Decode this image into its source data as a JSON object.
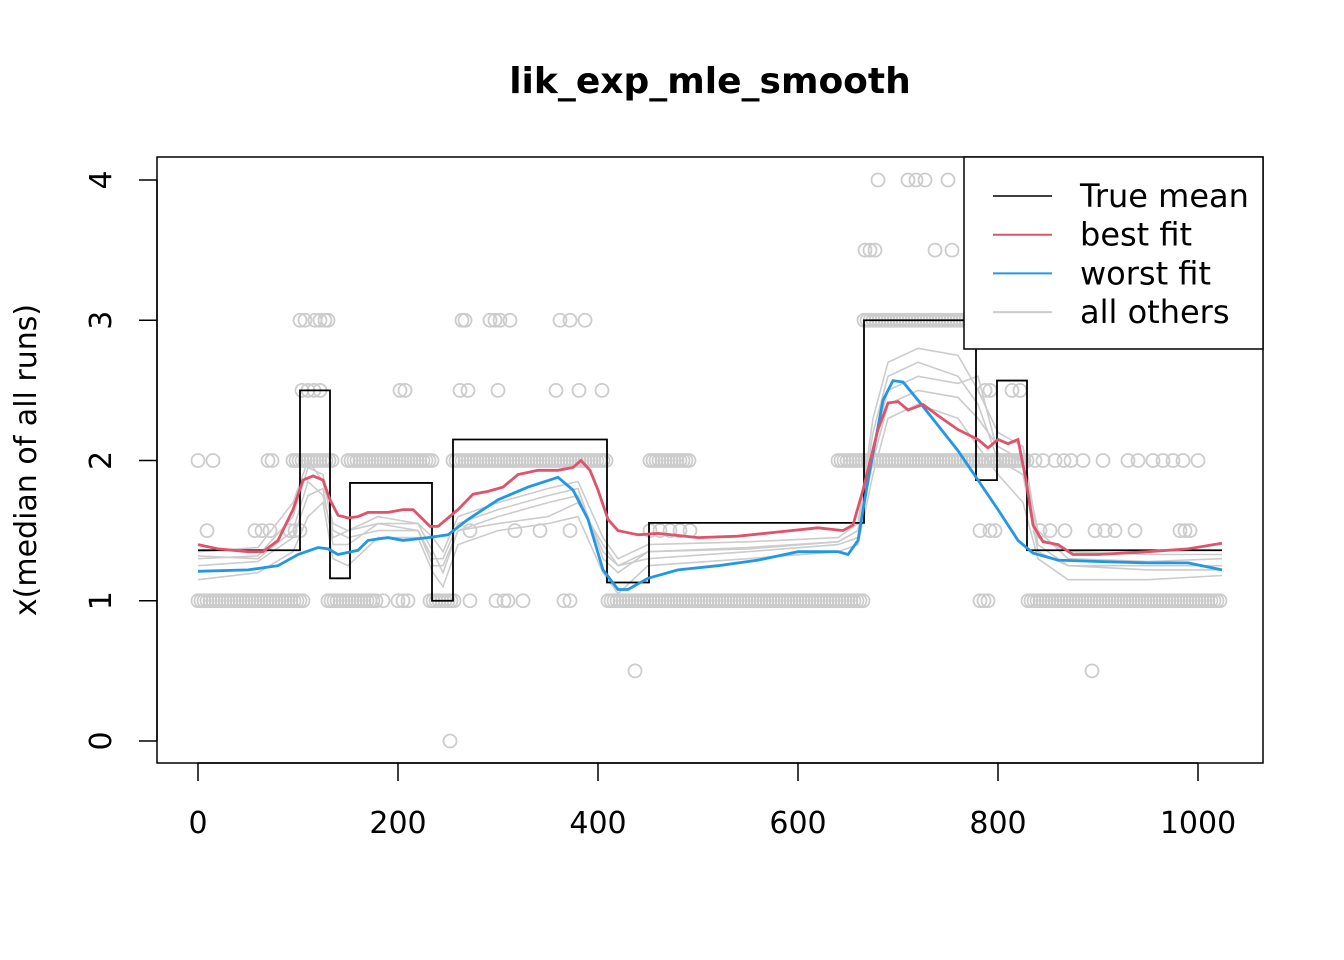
{
  "chart_data": {
    "type": "line",
    "title": "lik_exp_mle_smooth",
    "xlabel": "",
    "ylabel": "x(median of all runs)",
    "xlim": [
      -10,
      1055
    ],
    "ylim": [
      -0.15,
      4.15
    ],
    "x_ticks": [
      0,
      200,
      400,
      600,
      800,
      1000
    ],
    "y_ticks": [
      0,
      1,
      2,
      3,
      4
    ],
    "grid": false,
    "legend_placement": "top-right",
    "legend": [
      {
        "label": "True mean",
        "color": "#000000"
      },
      {
        "label": "best fit",
        "color": "#DF536B"
      },
      {
        "label": "worst fit",
        "color": "#2297E6"
      },
      {
        "label": "all others",
        "color": "#CCCCCC"
      }
    ],
    "true_mean_steps": [
      {
        "x0": 0,
        "x1": 102,
        "y": 1.36
      },
      {
        "x0": 102,
        "x1": 132,
        "y": 2.5
      },
      {
        "x0": 132,
        "x1": 152,
        "y": 1.16
      },
      {
        "x0": 152,
        "x1": 234,
        "y": 1.84
      },
      {
        "x0": 234,
        "x1": 255,
        "y": 1.0
      },
      {
        "x0": 255,
        "x1": 409,
        "y": 2.15
      },
      {
        "x0": 409,
        "x1": 451,
        "y": 1.13
      },
      {
        "x0": 451,
        "x1": 666,
        "y": 1.555
      },
      {
        "x0": 666,
        "x1": 778,
        "y": 3.0
      },
      {
        "x0": 778,
        "x1": 799,
        "y": 1.86
      },
      {
        "x0": 799,
        "x1": 829,
        "y": 2.57
      },
      {
        "x0": 829,
        "x1": 1024,
        "y": 1.36
      }
    ],
    "best_fit": {
      "x": [
        0,
        20,
        50,
        65,
        80,
        95,
        105,
        115,
        125,
        132,
        140,
        150,
        160,
        170,
        190,
        205,
        215,
        225,
        232,
        240,
        250,
        260,
        275,
        290,
        305,
        320,
        340,
        360,
        375,
        383,
        392,
        400,
        410,
        420,
        440,
        460,
        500,
        540,
        580,
        620,
        645,
        655,
        665,
        680,
        690,
        700,
        710,
        725,
        740,
        760,
        780,
        790,
        800,
        810,
        820,
        828,
        835,
        845,
        860,
        875,
        900,
        950,
        990,
        1024
      ],
      "y": [
        1.4,
        1.37,
        1.35,
        1.35,
        1.43,
        1.65,
        1.86,
        1.89,
        1.86,
        1.72,
        1.61,
        1.59,
        1.6,
        1.63,
        1.63,
        1.65,
        1.65,
        1.58,
        1.53,
        1.53,
        1.59,
        1.65,
        1.76,
        1.78,
        1.81,
        1.9,
        1.93,
        1.93,
        1.95,
        2.0,
        1.93,
        1.79,
        1.58,
        1.5,
        1.47,
        1.48,
        1.45,
        1.46,
        1.49,
        1.52,
        1.5,
        1.54,
        1.79,
        2.22,
        2.41,
        2.42,
        2.36,
        2.4,
        2.32,
        2.22,
        2.15,
        2.09,
        2.15,
        2.12,
        2.15,
        1.86,
        1.54,
        1.42,
        1.4,
        1.33,
        1.33,
        1.35,
        1.37,
        1.41
      ]
    },
    "worst_fit": {
      "x": [
        0,
        50,
        80,
        100,
        120,
        130,
        140,
        160,
        170,
        190,
        205,
        230,
        250,
        270,
        300,
        330,
        360,
        375,
        390,
        405,
        420,
        430,
        450,
        480,
        520,
        560,
        600,
        640,
        650,
        660,
        670,
        685,
        695,
        705,
        720,
        740,
        760,
        780,
        800,
        820,
        835,
        860,
        900,
        950,
        990,
        1024
      ],
      "y": [
        1.21,
        1.22,
        1.25,
        1.33,
        1.38,
        1.37,
        1.33,
        1.36,
        1.43,
        1.45,
        1.43,
        1.45,
        1.47,
        1.58,
        1.72,
        1.81,
        1.88,
        1.79,
        1.58,
        1.22,
        1.08,
        1.08,
        1.16,
        1.22,
        1.25,
        1.29,
        1.35,
        1.35,
        1.33,
        1.43,
        1.86,
        2.43,
        2.57,
        2.56,
        2.43,
        2.25,
        2.07,
        1.86,
        1.65,
        1.43,
        1.34,
        1.29,
        1.28,
        1.27,
        1.27,
        1.22
      ]
    },
    "others": {
      "x": [
        0,
        60,
        95,
        110,
        125,
        135,
        150,
        180,
        220,
        235,
        245,
        260,
        300,
        350,
        380,
        405,
        420,
        450,
        550,
        640,
        660,
        675,
        690,
        720,
        760,
        780,
        800,
        825,
        840,
        870,
        950,
        1024
      ],
      "series": [
        [
          1.3,
          1.32,
          1.6,
          1.95,
          1.9,
          1.5,
          1.45,
          1.5,
          1.5,
          1.3,
          1.3,
          1.55,
          1.65,
          1.75,
          1.8,
          1.3,
          1.2,
          1.35,
          1.38,
          1.42,
          1.5,
          2.2,
          2.6,
          2.7,
          2.6,
          2.4,
          2.0,
          1.9,
          1.35,
          1.25,
          1.22,
          1.22
        ],
        [
          1.25,
          1.28,
          1.45,
          1.75,
          1.8,
          1.4,
          1.4,
          1.55,
          1.55,
          1.35,
          1.2,
          1.5,
          1.55,
          1.6,
          1.7,
          1.4,
          1.25,
          1.3,
          1.35,
          1.4,
          1.45,
          2.0,
          2.4,
          2.5,
          2.45,
          2.3,
          2.1,
          2.0,
          1.5,
          1.3,
          1.28,
          1.3
        ],
        [
          1.35,
          1.38,
          1.7,
          2.0,
          1.85,
          1.55,
          1.5,
          1.6,
          1.55,
          1.45,
          1.35,
          1.6,
          1.7,
          1.8,
          1.85,
          1.45,
          1.3,
          1.4,
          1.42,
          1.45,
          1.55,
          2.3,
          2.7,
          2.8,
          2.75,
          2.5,
          2.2,
          2.1,
          1.45,
          1.35,
          1.33,
          1.33
        ],
        [
          1.15,
          1.2,
          1.35,
          1.6,
          1.7,
          1.3,
          1.25,
          1.45,
          1.45,
          1.2,
          1.1,
          1.4,
          1.5,
          1.55,
          1.6,
          1.2,
          1.05,
          1.25,
          1.3,
          1.35,
          1.4,
          1.9,
          2.3,
          2.4,
          2.3,
          2.1,
          1.9,
          1.7,
          1.3,
          1.15,
          1.15,
          1.18
        ],
        [
          1.32,
          1.3,
          1.5,
          1.85,
          1.75,
          1.45,
          1.5,
          1.55,
          1.5,
          1.25,
          1.25,
          1.5,
          1.6,
          1.7,
          1.75,
          1.35,
          1.25,
          1.35,
          1.37,
          1.42,
          1.5,
          2.1,
          2.5,
          2.6,
          2.55,
          2.6,
          2.05,
          2.0,
          1.4,
          1.25,
          1.25,
          1.25
        ]
      ]
    },
    "observations": [
      {
        "y": 4,
        "x": [
          680,
          710,
          718,
          727,
          750
        ]
      },
      {
        "y": 3.5,
        "x": [
          667,
          672,
          677,
          737,
          754
        ]
      },
      {
        "y": 3,
        "x": [
          102,
          107,
          117,
          122,
          127,
          130,
          264,
          267,
          292,
          297,
          302,
          312,
          362,
          372,
          387
        ],
        "runs": [
          [
            666,
            778
          ]
        ]
      },
      {
        "y": 2.5,
        "x": [
          104,
          110,
          116,
          122,
          202,
          207,
          262,
          270,
          300,
          358,
          381,
          404,
          787,
          792,
          814,
          822
        ]
      },
      {
        "y": 2,
        "x": [
          0,
          15,
          70,
          74,
          837,
          845,
          857,
          866,
          873,
          885,
          905,
          930,
          940,
          955,
          965,
          975,
          985,
          1000
        ],
        "runs": [
          [
            95,
            135
          ],
          [
            150,
            235
          ],
          [
            255,
            410
          ],
          [
            452,
            492
          ],
          [
            640,
            830
          ]
        ]
      },
      {
        "y": 1.5,
        "x": [
          9,
          57,
          64,
          72,
          92,
          97,
          102,
          272,
          317,
          342,
          372,
          452,
          462,
          472,
          482,
          492,
          782,
          792,
          797,
          842,
          852,
          867,
          897,
          907,
          917,
          937,
          982,
          987,
          992
        ]
      },
      {
        "y": 1,
        "x": [
          178,
          185,
          200,
          205,
          210,
          272,
          298,
          306,
          310,
          325,
          366,
          372,
          782,
          786,
          790
        ],
        "runs": [
          [
            0,
            105
          ],
          [
            130,
            175
          ],
          [
            232,
            258
          ],
          [
            410,
            665
          ],
          [
            830,
            1024
          ]
        ]
      },
      {
        "y": 0.5,
        "x": [
          437,
          894
        ]
      },
      {
        "y": 0,
        "x": [
          252
        ]
      }
    ]
  }
}
